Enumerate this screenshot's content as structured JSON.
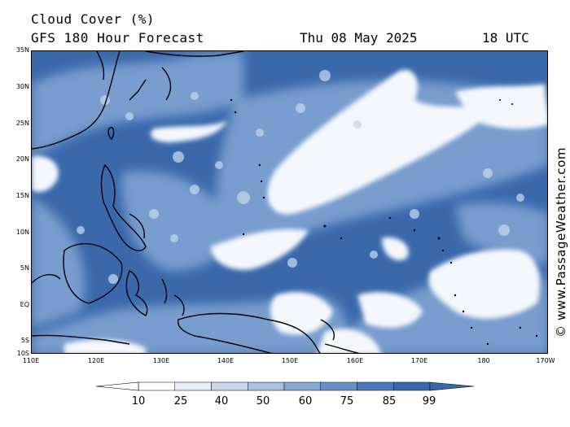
{
  "title": "Cloud Cover (%)",
  "subtitle": "GFS 180 Hour Forecast",
  "date": "Thu 08 May 2025",
  "time": "18 UTC",
  "credit": "© www.PassageWeather.com",
  "lat_labels": [
    "35N",
    "30N",
    "25N",
    "20N",
    "15N",
    "10N",
    "5N",
    "EQ",
    "5S",
    "10S"
  ],
  "lon_labels": [
    "110E",
    "120E",
    "130E",
    "140E",
    "150E",
    "160E",
    "170E",
    "180",
    "170W"
  ],
  "colorbar": {
    "ticks": [
      "10",
      "25",
      "40",
      "50",
      "60",
      "75",
      "85",
      "99"
    ],
    "colors": [
      "#ffffff",
      "#e6edf7",
      "#c9d8ec",
      "#a9c1e2",
      "#87a9d6",
      "#6790c8",
      "#4a78b8",
      "#3a69ab"
    ]
  },
  "colors": {
    "ocean": "#3a69ab",
    "cloud_light": "#dbe6f4",
    "cloud_mid": "#7fa3d2",
    "coast": "#000000"
  }
}
